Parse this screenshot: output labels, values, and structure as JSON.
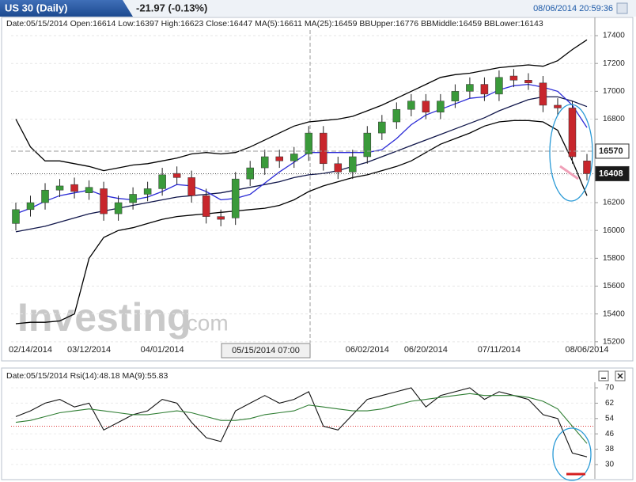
{
  "header": {
    "title": "US 30 (Daily)",
    "change": "-21.97 (-0.13%)",
    "timestamp": "08/06/2014 20:59:36"
  },
  "chart_data": [
    {
      "type": "candlestick",
      "info": "Date:05/15/2014 Open:16614 Low:16397 High:16623 Close:16447 MA(5):16611 MA(25):16459 BBUpper:16776 BBMiddle:16459 BBLower:16143",
      "watermark": "Investing",
      "watermark_suffix": ".com",
      "crosshair_label": "05/15/2014 07:00",
      "categories": [
        null,
        "02/14/2014",
        null,
        null,
        null,
        "03/12/2014",
        null,
        null,
        null,
        null,
        "04/01/2014",
        null,
        null,
        null,
        null,
        null,
        null,
        null,
        null,
        null,
        null,
        null,
        null,
        null,
        "06/02/2014",
        null,
        null,
        null,
        "06/20/2014",
        null,
        null,
        null,
        null,
        "07/11/2014",
        null,
        null,
        null,
        null,
        null,
        "08/06/2014"
      ],
      "open": [
        16050,
        16150,
        16200,
        16290,
        16330,
        16270,
        16300,
        16120,
        16200,
        16260,
        16300,
        16410,
        16380,
        16250,
        16100,
        16090,
        16370,
        16450,
        16530,
        16500,
        16550,
        16700,
        16480,
        16420,
        16530,
        16700,
        16780,
        16870,
        16930,
        16850,
        16930,
        17000,
        17050,
        16980,
        17110,
        17080,
        17060,
        16900,
        16880,
        16500
      ],
      "high": [
        16200,
        16250,
        16340,
        16370,
        16380,
        16360,
        16350,
        16250,
        16310,
        16350,
        16450,
        16460,
        16430,
        16300,
        16150,
        16420,
        16500,
        16580,
        16580,
        16600,
        16750,
        16750,
        16530,
        16580,
        16750,
        16830,
        16920,
        16980,
        16980,
        16980,
        17050,
        17100,
        17100,
        17150,
        17160,
        17130,
        17110,
        16950,
        16930,
        16550
      ],
      "low": [
        16000,
        16100,
        16150,
        16240,
        16230,
        16220,
        16070,
        16070,
        16150,
        16210,
        16250,
        16330,
        16200,
        16050,
        16030,
        16040,
        16320,
        16400,
        16450,
        16450,
        16500,
        16430,
        16370,
        16370,
        16480,
        16650,
        16730,
        16820,
        16800,
        16800,
        16880,
        16950,
        16930,
        16930,
        17030,
        17010,
        16850,
        16830,
        16480,
        16360
      ],
      "close": [
        16150,
        16200,
        16290,
        16320,
        16280,
        16310,
        16120,
        16200,
        16260,
        16300,
        16400,
        16380,
        16250,
        16100,
        16080,
        16370,
        16450,
        16530,
        16500,
        16550,
        16700,
        16480,
        16420,
        16530,
        16700,
        16780,
        16870,
        16930,
        16850,
        16930,
        17000,
        17050,
        16980,
        17100,
        17080,
        17060,
        16900,
        16880,
        16530,
        16408
      ],
      "up_color": "#3a9a3a",
      "down_color": "#c8262c",
      "series": [
        {
          "color": "#000000",
          "values": [
            16800,
            16600,
            16500,
            16500,
            16480,
            16460,
            16430,
            16450,
            16470,
            16480,
            16500,
            16520,
            16550,
            16560,
            16550,
            16560,
            16600,
            16650,
            16700,
            16750,
            16780,
            16790,
            16800,
            16820,
            16860,
            16900,
            16950,
            17000,
            17050,
            17100,
            17120,
            17130,
            17150,
            17170,
            17180,
            17190,
            17180,
            17220,
            17300,
            17370
          ]
        },
        {
          "color": "#000000",
          "values": [
            15330,
            15340,
            15340,
            15350,
            15400,
            15800,
            15950,
            16000,
            16020,
            16050,
            16080,
            16100,
            16110,
            16120,
            16130,
            16140,
            16150,
            16160,
            16180,
            16220,
            16280,
            16320,
            16350,
            16380,
            16400,
            16430,
            16460,
            16500,
            16560,
            16620,
            16660,
            16700,
            16750,
            16780,
            16790,
            16790,
            16780,
            16720,
            16500,
            16250
          ]
        },
        {
          "color": "#10164a",
          "values": [
            15990,
            16010,
            16030,
            16060,
            16090,
            16120,
            16140,
            16160,
            16180,
            16200,
            16220,
            16240,
            16250,
            16260,
            16270,
            16290,
            16310,
            16330,
            16350,
            16380,
            16400,
            16410,
            16430,
            16460,
            16490,
            16530,
            16570,
            16610,
            16650,
            16690,
            16730,
            16770,
            16810,
            16860,
            16900,
            16940,
            16960,
            16960,
            16930,
            16890
          ]
        },
        {
          "color": "#2b2bd6",
          "values": [
            16120,
            16160,
            16210,
            16250,
            16270,
            16290,
            16250,
            16230,
            16220,
            16240,
            16280,
            16330,
            16320,
            16280,
            16220,
            16230,
            16260,
            16340,
            16420,
            16490,
            16560,
            16560,
            16560,
            16560,
            16560,
            16580,
            16660,
            16760,
            16830,
            16870,
            16910,
            16950,
            16960,
            17010,
            17040,
            17050,
            17030,
            17000,
            16900,
            16740
          ]
        }
      ],
      "price_labels": [
        16570,
        16408
      ],
      "ylim": [
        15165,
        17440
      ],
      "yticks": [
        15200,
        15400,
        15600,
        15800,
        16000,
        16200,
        16400,
        16600,
        16800,
        17000,
        17200,
        17400
      ],
      "grid": true
    },
    {
      "type": "line",
      "info": "Date:05/15/2014 Rsi(14):48.18 MA(9):55.83",
      "series": [
        {
          "color": "#111111",
          "values": [
            55,
            58,
            62,
            64,
            60,
            62,
            48,
            52,
            56,
            58,
            64,
            62,
            52,
            44,
            42,
            58,
            62,
            66,
            62,
            64,
            68,
            50,
            48,
            56,
            64,
            66,
            68,
            70,
            60,
            66,
            68,
            70,
            64,
            68,
            66,
            64,
            56,
            54,
            36,
            34
          ]
        },
        {
          "color": "#2e7d32",
          "values": [
            52,
            53,
            55,
            57,
            58,
            59,
            58,
            57,
            56,
            56,
            57,
            58,
            57,
            55,
            53,
            53,
            54,
            56,
            57,
            58,
            61,
            60,
            59,
            58,
            58,
            59,
            61,
            63,
            64,
            65,
            66,
            67,
            66,
            66,
            66,
            65,
            63,
            59,
            50,
            41
          ]
        }
      ],
      "reference_line": 50,
      "ylim": [
        24.6,
        72.9
      ],
      "yticks": [
        30,
        38,
        46,
        54,
        62,
        70
      ],
      "grid": true
    }
  ]
}
